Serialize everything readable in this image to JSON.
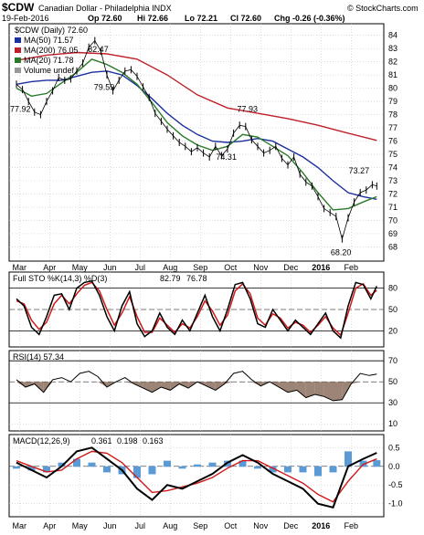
{
  "header": {
    "symbol": "$CDW",
    "name": "Canadian Dollar - Philadelphia INDX",
    "date": "19-Feb-2016",
    "op": "Op 72.60",
    "hi": "Hi 72.66",
    "lo": "Lo 72.21",
    "cl": "Cl 72.60",
    "chg": "Chg -0.26 (-0.36%)",
    "credit": "© StockCharts.com"
  },
  "colors": {
    "price": "#000000",
    "ma50": "#1c2fa0",
    "ma200": "#c0202a",
    "ma20": "#2a7a2a",
    "sto_k": "#000000",
    "sto_d": "#d01a1a",
    "rsi": "#000000",
    "rsi_fill": "#8b6f5e",
    "macd": "#000000",
    "signal": "#d01a1a",
    "hist": "#5b9bd5",
    "panel_border": "#000000",
    "grid": "#c8c8c8"
  },
  "chart_data": [
    {
      "type": "line",
      "panel": "price",
      "legend": [
        "$CDW (Daily) 72.60",
        "MA(50) 71.57",
        "MA(200) 76.05",
        "MA(20) 71.78",
        "Volume undef"
      ],
      "x_ticks": [
        "Mar",
        "Apr",
        "May",
        "Jun",
        "Jul",
        "Aug",
        "Sep",
        "Oct",
        "Nov",
        "Dec",
        "2016",
        "Feb"
      ],
      "y_ticks": [
        68,
        69,
        70,
        71,
        72,
        73,
        74,
        75,
        76,
        77,
        78,
        79,
        80,
        81,
        82,
        83,
        84
      ],
      "ylim": [
        67.2,
        84.6
      ],
      "annotations": [
        {
          "label": "77.92",
          "x": 0.07,
          "y": 77.92
        },
        {
          "label": "82.47",
          "x": 2.65,
          "y": 82.47
        },
        {
          "label": "79.59",
          "x": 2.85,
          "y": 79.59
        },
        {
          "label": "74.31",
          "x": 6.9,
          "y": 74.31
        },
        {
          "label": "77.93",
          "x": 7.6,
          "y": 77.93
        },
        {
          "label": "73.27",
          "x": 11.3,
          "y": 73.27
        },
        {
          "label": "68.20",
          "x": 10.7,
          "y": 68.2
        }
      ],
      "series": [
        {
          "name": "$CDW (Daily)",
          "x": [
            0,
            0.2,
            0.4,
            0.6,
            0.8,
            1.0,
            1.2,
            1.4,
            1.6,
            1.8,
            2.0,
            2.2,
            2.4,
            2.6,
            2.8,
            3.0,
            3.2,
            3.4,
            3.6,
            3.8,
            4.0,
            4.2,
            4.4,
            4.6,
            4.8,
            5.0,
            5.2,
            5.4,
            5.6,
            5.8,
            6.0,
            6.2,
            6.4,
            6.6,
            6.8,
            7.0,
            7.2,
            7.4,
            7.6,
            7.8,
            8.0,
            8.2,
            8.4,
            8.6,
            8.8,
            9.0,
            9.2,
            9.4,
            9.6,
            9.8,
            10.0,
            10.2,
            10.4,
            10.6,
            10.8,
            11.0,
            11.2,
            11.4,
            11.6,
            11.8,
            11.95
          ],
          "y": [
            80.3,
            79.9,
            79.0,
            78.2,
            78.0,
            79.0,
            79.8,
            80.8,
            80.6,
            80.7,
            81.3,
            81.9,
            83.1,
            83.6,
            82.8,
            81.0,
            79.8,
            80.6,
            81.3,
            81.4,
            80.9,
            80.1,
            79.3,
            78.1,
            77.5,
            76.9,
            76.4,
            75.9,
            75.6,
            75.2,
            75.5,
            75.1,
            74.8,
            75.6,
            74.9,
            75.4,
            76.6,
            77.2,
            77.1,
            76.1,
            75.6,
            75.1,
            75.3,
            75.6,
            74.7,
            74.2,
            74.8,
            73.5,
            72.9,
            72.6,
            71.8,
            70.9,
            70.6,
            70.3,
            68.6,
            70.2,
            71.4,
            72.1,
            72.3,
            72.7,
            72.6
          ]
        },
        {
          "name": "MA(50)",
          "x": [
            0,
            0.5,
            1.0,
            1.5,
            2.0,
            2.5,
            3.0,
            3.5,
            4.0,
            4.5,
            5.0,
            5.5,
            6.0,
            6.5,
            7.0,
            7.5,
            8.0,
            8.5,
            9.0,
            9.5,
            10.0,
            10.5,
            11.0,
            11.5,
            11.95
          ],
          "y": [
            80.3,
            80.5,
            80.6,
            80.6,
            80.9,
            81.2,
            81.3,
            81.0,
            80.2,
            79.2,
            78.1,
            77.2,
            76.5,
            76.0,
            75.9,
            76.0,
            76.2,
            76.0,
            75.4,
            74.8,
            74.0,
            73.0,
            72.1,
            71.8,
            71.6
          ]
        },
        {
          "name": "MA(200)",
          "x": [
            0,
            1,
            2,
            3,
            4,
            5,
            6,
            7,
            8,
            9,
            10,
            11,
            11.95
          ],
          "y": [
            82.1,
            82.5,
            82.7,
            82.6,
            82.2,
            81.0,
            79.5,
            78.5,
            78.1,
            77.7,
            77.2,
            76.6,
            76.05
          ]
        },
        {
          "name": "MA(20)",
          "x": [
            0,
            0.5,
            1.0,
            1.5,
            2.0,
            2.5,
            3.0,
            3.5,
            4.0,
            4.5,
            5.0,
            5.5,
            6.0,
            6.5,
            7.0,
            7.5,
            8.0,
            8.5,
            9.0,
            9.5,
            10.0,
            10.5,
            11.0,
            11.5,
            11.95
          ],
          "y": [
            80.0,
            79.4,
            79.6,
            80.4,
            81.2,
            82.2,
            81.8,
            81.2,
            80.3,
            78.9,
            77.4,
            76.4,
            75.7,
            75.3,
            75.6,
            76.5,
            76.3,
            75.6,
            74.9,
            73.6,
            72.1,
            70.8,
            70.9,
            71.4,
            71.8
          ]
        }
      ]
    },
    {
      "type": "line",
      "panel": "stochastic",
      "legend": [
        "Full STO %K(14,3) %D(3)",
        "82.79",
        "76.78"
      ],
      "y_ticks": [
        20,
        50,
        80
      ],
      "ylim": [
        0,
        100
      ],
      "series": [
        {
          "name": "%K",
          "x": [
            0,
            0.25,
            0.5,
            0.75,
            1.0,
            1.25,
            1.5,
            1.75,
            2.0,
            2.25,
            2.5,
            2.75,
            3.0,
            3.25,
            3.5,
            3.75,
            4.0,
            4.25,
            4.5,
            4.75,
            5.0,
            5.25,
            5.5,
            5.75,
            6.0,
            6.25,
            6.5,
            6.75,
            7.0,
            7.25,
            7.5,
            7.75,
            8.0,
            8.25,
            8.5,
            8.75,
            9.0,
            9.25,
            9.5,
            9.75,
            10.0,
            10.25,
            10.5,
            10.75,
            11.0,
            11.25,
            11.5,
            11.75,
            11.95
          ],
          "y": [
            65,
            55,
            25,
            15,
            40,
            70,
            72,
            50,
            80,
            88,
            90,
            70,
            40,
            20,
            55,
            75,
            30,
            12,
            20,
            45,
            25,
            15,
            35,
            20,
            45,
            70,
            40,
            20,
            50,
            85,
            88,
            65,
            30,
            25,
            50,
            35,
            20,
            35,
            25,
            15,
            30,
            45,
            20,
            10,
            55,
            88,
            85,
            65,
            82.79
          ]
        },
        {
          "name": "%D",
          "x": [
            0,
            0.25,
            0.5,
            0.75,
            1.0,
            1.25,
            1.5,
            1.75,
            2.0,
            2.25,
            2.5,
            2.75,
            3.0,
            3.25,
            3.5,
            3.75,
            4.0,
            4.25,
            4.5,
            4.75,
            5.0,
            5.25,
            5.5,
            5.75,
            6.0,
            6.25,
            6.5,
            6.75,
            7.0,
            7.25,
            7.5,
            7.75,
            8.0,
            8.25,
            8.5,
            8.75,
            9.0,
            9.25,
            9.5,
            9.75,
            10.0,
            10.25,
            10.5,
            10.75,
            11.0,
            11.25,
            11.5,
            11.75,
            11.95
          ],
          "y": [
            62,
            58,
            35,
            22,
            32,
            58,
            70,
            58,
            72,
            84,
            88,
            76,
            50,
            28,
            45,
            68,
            40,
            18,
            18,
            38,
            28,
            18,
            30,
            24,
            40,
            62,
            48,
            28,
            42,
            76,
            86,
            72,
            38,
            28,
            44,
            38,
            24,
            32,
            28,
            18,
            28,
            40,
            24,
            14,
            45,
            80,
            86,
            70,
            76.78
          ]
        }
      ]
    },
    {
      "type": "line",
      "panel": "rsi",
      "legend": [
        "RSI(14) 57.34"
      ],
      "y_ticks": [
        10,
        30,
        50,
        70
      ],
      "ylim": [
        5,
        78
      ],
      "series": [
        {
          "name": "RSI(14)",
          "x": [
            0,
            0.3,
            0.6,
            0.9,
            1.2,
            1.5,
            1.8,
            2.1,
            2.4,
            2.7,
            3.0,
            3.3,
            3.6,
            3.9,
            4.2,
            4.5,
            4.8,
            5.1,
            5.4,
            5.7,
            6.0,
            6.3,
            6.6,
            6.9,
            7.2,
            7.5,
            7.8,
            8.1,
            8.4,
            8.7,
            9.0,
            9.3,
            9.6,
            9.9,
            10.2,
            10.5,
            10.8,
            11.1,
            11.4,
            11.7,
            11.95
          ],
          "y": [
            52,
            45,
            48,
            40,
            52,
            54,
            50,
            58,
            60,
            55,
            45,
            50,
            54,
            48,
            44,
            40,
            45,
            42,
            48,
            44,
            50,
            46,
            42,
            48,
            58,
            60,
            52,
            46,
            50,
            45,
            40,
            42,
            35,
            38,
            36,
            32,
            33,
            48,
            58,
            56,
            57.34
          ]
        }
      ]
    },
    {
      "type": "line",
      "panel": "macd",
      "legend": [
        "MACD(12,26,9)",
        "0.361",
        "0.198",
        "0.163"
      ],
      "y_ticks": [
        -1.0,
        -0.5,
        0.0,
        0.5
      ],
      "ylim": [
        -1.3,
        0.8
      ],
      "series": [
        {
          "name": "MACD",
          "x": [
            0,
            0.5,
            1.0,
            1.5,
            2.0,
            2.5,
            3.0,
            3.5,
            4.0,
            4.5,
            5.0,
            5.5,
            6.0,
            6.5,
            7.0,
            7.5,
            8.0,
            8.5,
            9.0,
            9.5,
            10.0,
            10.5,
            11.0,
            11.5,
            11.95
          ],
          "y": [
            0.1,
            -0.1,
            -0.3,
            0.0,
            0.4,
            0.5,
            0.2,
            -0.1,
            -0.6,
            -0.9,
            -0.5,
            -0.6,
            -0.4,
            -0.2,
            0.1,
            0.3,
            0.1,
            -0.2,
            -0.4,
            -0.6,
            -1.0,
            -1.1,
            0.0,
            0.2,
            0.361
          ]
        },
        {
          "name": "Signal",
          "x": [
            0,
            0.5,
            1.0,
            1.5,
            2.0,
            2.5,
            3.0,
            3.5,
            4.0,
            4.5,
            5.0,
            5.5,
            6.0,
            6.5,
            7.0,
            7.5,
            8.0,
            8.5,
            9.0,
            9.5,
            10.0,
            10.5,
            11.0,
            11.5,
            11.95
          ],
          "y": [
            0.15,
            0.0,
            -0.15,
            -0.1,
            0.2,
            0.4,
            0.35,
            0.1,
            -0.3,
            -0.7,
            -0.65,
            -0.55,
            -0.45,
            -0.3,
            -0.05,
            0.15,
            0.15,
            -0.05,
            -0.25,
            -0.45,
            -0.75,
            -0.95,
            -0.4,
            0.05,
            0.198
          ]
        }
      ]
    }
  ]
}
